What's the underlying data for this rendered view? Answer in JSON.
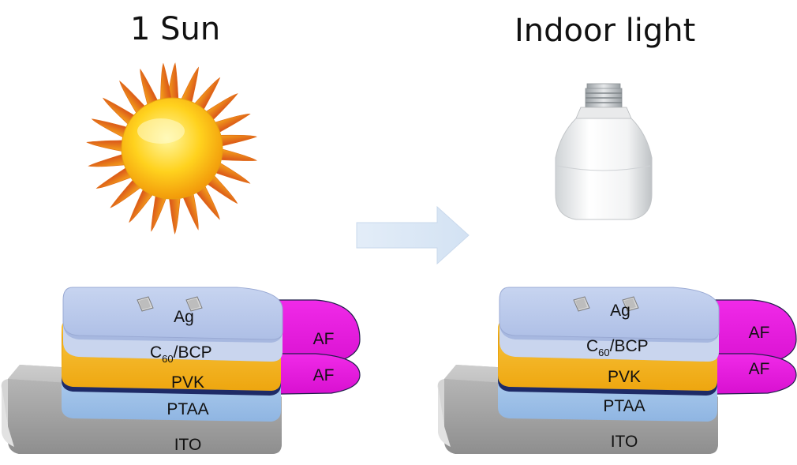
{
  "left_panel": {
    "title": "1 Sun",
    "light_source_icon": "sun-icon"
  },
  "right_panel": {
    "title": "Indoor light",
    "light_source_icon": "light-bulb-icon"
  },
  "transition_icon": "arrow-right-icon",
  "layers": {
    "ag": "Ag",
    "c60_bcp_main": "C",
    "c60_bcp_sub": "60",
    "c60_bcp_rest": "/BCP",
    "pvk": "PVK",
    "ptaa": "PTAA",
    "ito": "ITO",
    "af": "AF"
  },
  "colors": {
    "ag": "#b9c8ea",
    "pvk": "#f2b21a",
    "ptaa": "#a9c9ec",
    "ito": "#c4c4c4",
    "af": "#e81ae0"
  }
}
